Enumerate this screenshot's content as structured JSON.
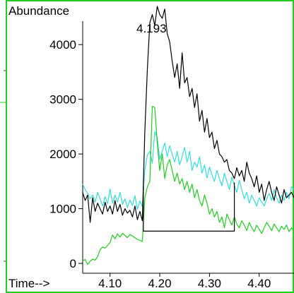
{
  "chart_data": {
    "type": "line",
    "ylabel": "Abundance",
    "xlabel": "Time-->",
    "peak_label": "4.193",
    "xlim": [
      4.045,
      4.47
    ],
    "ylim": [
      -180,
      4790
    ],
    "x_ticks": [
      {
        "value": 4.1,
        "label": "4.10"
      },
      {
        "value": 4.2,
        "label": "4.20"
      },
      {
        "value": 4.3,
        "label": "4.30"
      },
      {
        "value": 4.4,
        "label": "4.40"
      }
    ],
    "y_ticks": [
      {
        "value": 0,
        "label": "0"
      },
      {
        "value": 1000,
        "label": "1000"
      },
      {
        "value": 2000,
        "label": "2000"
      },
      {
        "value": 3000,
        "label": "3000"
      },
      {
        "value": 4000,
        "label": "4000"
      }
    ],
    "colors": {
      "frame": "#22cc22",
      "axis": "#000000",
      "total": "#000000",
      "cyan": "#33dddd",
      "green": "#22cc22",
      "baseline": "#000000"
    },
    "baseline": {
      "x": [
        4.167,
        4.167,
        4.35,
        4.35
      ],
      "y": [
        1400,
        590,
        590,
        1480
      ]
    },
    "series": [
      {
        "color": "#33dddd",
        "x": [
          4.045,
          4.05,
          4.055,
          4.06,
          4.065,
          4.07,
          4.075,
          4.08,
          4.085,
          4.09,
          4.095,
          4.1,
          4.105,
          4.11,
          4.115,
          4.12,
          4.125,
          4.13,
          4.135,
          4.14,
          4.145,
          4.15,
          4.155,
          4.16,
          4.165,
          4.17,
          4.175,
          4.18,
          4.185,
          4.19,
          4.195,
          4.2,
          4.205,
          4.21,
          4.215,
          4.22,
          4.225,
          4.23,
          4.235,
          4.24,
          4.245,
          4.25,
          4.255,
          4.26,
          4.265,
          4.27,
          4.275,
          4.28,
          4.285,
          4.29,
          4.295,
          4.3,
          4.305,
          4.31,
          4.315,
          4.32,
          4.325,
          4.33,
          4.335,
          4.34,
          4.345,
          4.35,
          4.355,
          4.36,
          4.365,
          4.37,
          4.375,
          4.38,
          4.385,
          4.39,
          4.395,
          4.4,
          4.405,
          4.41,
          4.415,
          4.42,
          4.425,
          4.43,
          4.435,
          4.44,
          4.445,
          4.45,
          4.455,
          4.46,
          4.465,
          4.47
        ],
        "y": [
          1450,
          1350,
          1280,
          1180,
          1250,
          1120,
          1300,
          1180,
          1050,
          1220,
          1090,
          1360,
          1100,
          1250,
          1120,
          1300,
          1080,
          1180,
          1020,
          1160,
          1060,
          1240,
          990,
          1140,
          1040,
          1700,
          1980,
          2050,
          1830,
          2410,
          2300,
          1900,
          2050,
          2200,
          1950,
          2150,
          2000,
          1850,
          2050,
          1800,
          1950,
          2120,
          1850,
          2050,
          1700,
          1850,
          1760,
          1950,
          1650,
          1800,
          1560,
          1760,
          1620,
          1500,
          1700,
          1550,
          1420,
          1650,
          1500,
          1350,
          1580,
          1420,
          1300,
          1520,
          1350,
          1180,
          1300,
          1100,
          1250,
          1150,
          1050,
          1200,
          1120,
          1050,
          1180,
          1280,
          1150,
          1350,
          1200,
          1100,
          1250,
          1150,
          1300,
          1180,
          1400,
          1350
        ]
      },
      {
        "color": "#22cc22",
        "x": [
          4.045,
          4.05,
          4.055,
          4.06,
          4.065,
          4.07,
          4.075,
          4.08,
          4.085,
          4.09,
          4.095,
          4.1,
          4.105,
          4.11,
          4.115,
          4.12,
          4.125,
          4.13,
          4.135,
          4.14,
          4.145,
          4.15,
          4.155,
          4.16,
          4.165,
          4.17,
          4.175,
          4.18,
          4.185,
          4.19,
          4.195,
          4.2,
          4.205,
          4.21,
          4.215,
          4.22,
          4.225,
          4.23,
          4.235,
          4.24,
          4.245,
          4.25,
          4.255,
          4.26,
          4.265,
          4.27,
          4.275,
          4.28,
          4.285,
          4.29,
          4.295,
          4.3,
          4.305,
          4.31,
          4.315,
          4.32,
          4.325,
          4.33,
          4.335,
          4.34,
          4.345,
          4.35,
          4.355,
          4.36,
          4.365,
          4.37,
          4.375,
          4.38,
          4.385,
          4.39,
          4.395,
          4.4,
          4.405,
          4.41,
          4.415,
          4.42,
          4.425,
          4.43,
          4.435,
          4.44,
          4.445,
          4.45,
          4.455,
          4.46,
          4.465,
          4.47
        ],
        "y": [
          50,
          70,
          -20,
          40,
          80,
          60,
          120,
          250,
          300,
          280,
          330,
          380,
          520,
          450,
          540,
          480,
          550,
          510,
          470,
          530,
          500,
          470,
          440,
          420,
          400,
          1200,
          1400,
          1500,
          2870,
          2850,
          2200,
          1700,
          2000,
          1550,
          1800,
          1900,
          1700,
          1500,
          1650,
          1450,
          1550,
          1350,
          1500,
          1300,
          1450,
          1200,
          1350,
          1150,
          1050,
          1250,
          1100,
          900,
          1000,
          850,
          950,
          750,
          850,
          650,
          900,
          800,
          700,
          850,
          720,
          650,
          780,
          700,
          600,
          750,
          650,
          580,
          700,
          620,
          550,
          650,
          750,
          680,
          600,
          720,
          650,
          580,
          680,
          620,
          700,
          580,
          650,
          600
        ]
      },
      {
        "color": "#000000",
        "x": [
          4.045,
          4.05,
          4.055,
          4.06,
          4.065,
          4.07,
          4.075,
          4.08,
          4.085,
          4.09,
          4.095,
          4.1,
          4.105,
          4.11,
          4.115,
          4.12,
          4.125,
          4.13,
          4.135,
          4.14,
          4.145,
          4.15,
          4.155,
          4.16,
          4.165,
          4.17,
          4.175,
          4.18,
          4.185,
          4.19,
          4.195,
          4.2,
          4.205,
          4.21,
          4.215,
          4.22,
          4.225,
          4.23,
          4.235,
          4.24,
          4.245,
          4.25,
          4.255,
          4.26,
          4.265,
          4.27,
          4.275,
          4.28,
          4.285,
          4.29,
          4.295,
          4.3,
          4.305,
          4.31,
          4.315,
          4.32,
          4.325,
          4.33,
          4.335,
          4.34,
          4.345,
          4.35,
          4.355,
          4.36,
          4.365,
          4.37,
          4.375,
          4.38,
          4.385,
          4.39,
          4.395,
          4.4,
          4.405,
          4.41,
          4.415,
          4.42,
          4.425,
          4.43,
          4.435,
          4.44,
          4.445,
          4.45,
          4.455,
          4.46,
          4.465,
          4.47
        ],
        "y": [
          1300,
          1150,
          1250,
          750,
          1200,
          950,
          1100,
          1000,
          900,
          1120,
          950,
          1050,
          900,
          1150,
          950,
          1080,
          880,
          1000,
          920,
          970,
          850,
          1050,
          800,
          950,
          780,
          2400,
          3550,
          4400,
          4550,
          4350,
          4700,
          4550,
          4480,
          4650,
          4200,
          4050,
          3700,
          3400,
          3650,
          3200,
          3850,
          3300,
          3400,
          3050,
          3200,
          2850,
          3100,
          2600,
          2800,
          2400,
          2650,
          2300,
          2400,
          2100,
          2250,
          2000,
          1950,
          1850,
          1900,
          1700,
          1650,
          1550,
          1750,
          1600,
          1700,
          1500,
          1850,
          1650,
          1550,
          1400,
          1600,
          1300,
          1450,
          1150,
          1350,
          1500,
          1300,
          1150,
          1400,
          1250,
          1100,
          1350,
          1200,
          1250,
          1300,
          1200
        ]
      }
    ]
  }
}
